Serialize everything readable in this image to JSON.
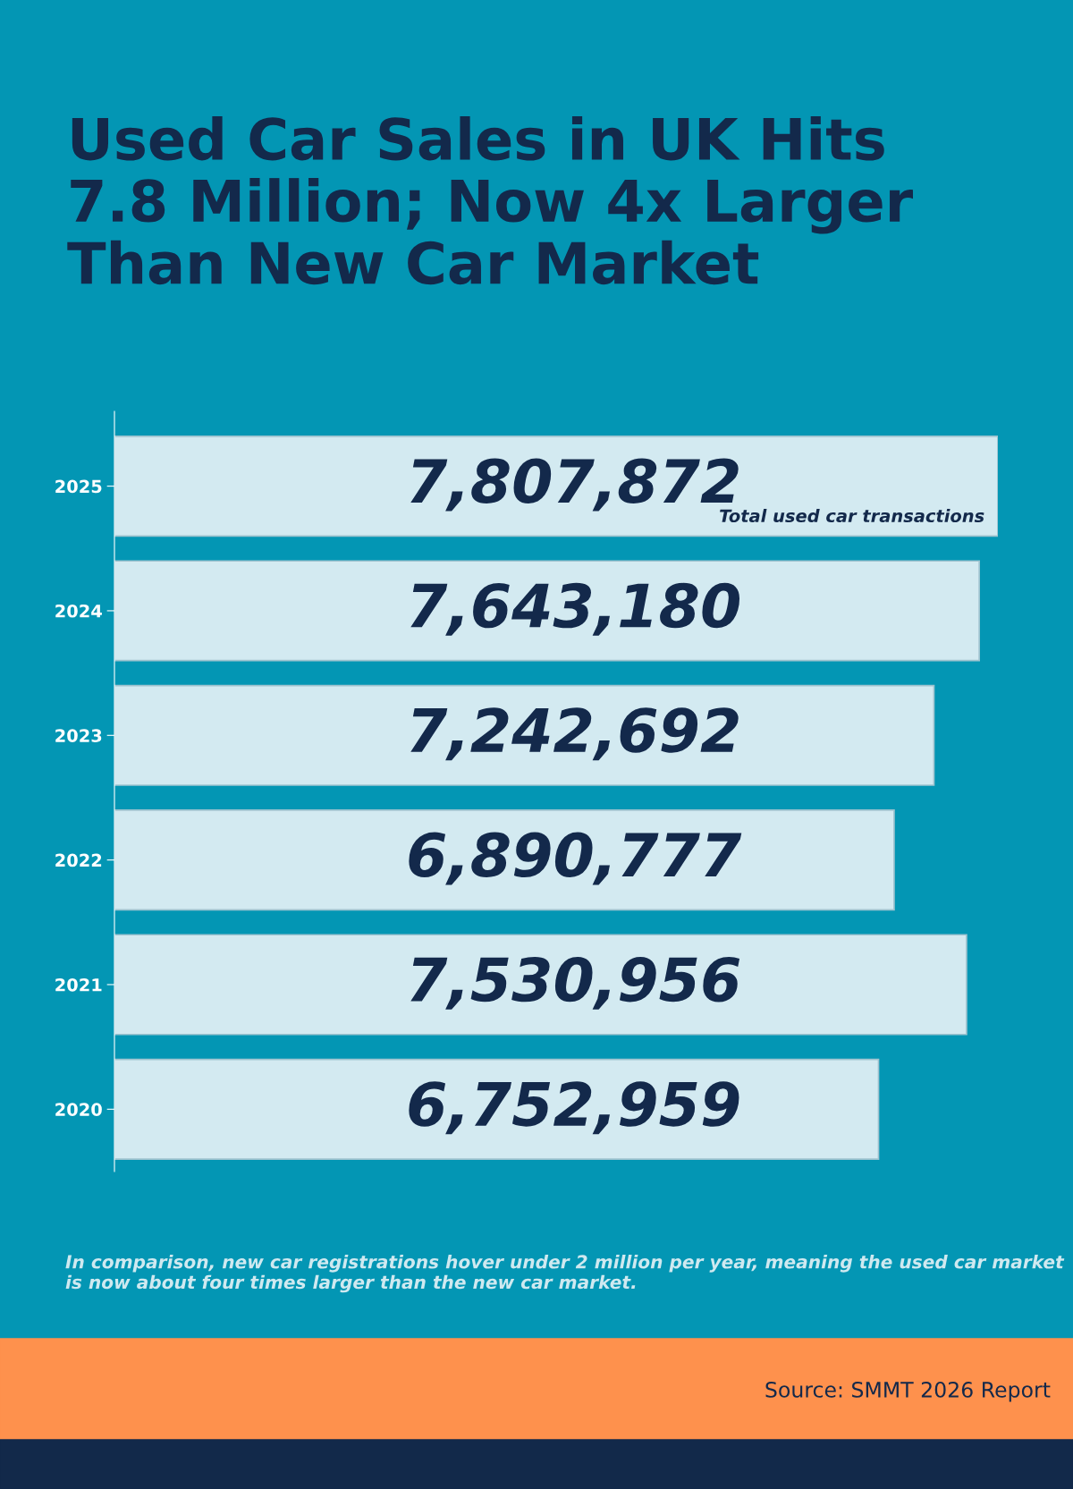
{
  "chart_data": {
    "type": "bar",
    "orientation": "horizontal",
    "title": "Used Car Sales in UK Hits\n7.8 Million; Now 4x Larger\nThan New Car Market",
    "categories": [
      "2025",
      "2024",
      "2023",
      "2022",
      "2021",
      "2020"
    ],
    "values": [
      7807872,
      7643180,
      7242692,
      6890777,
      7530956,
      6752959
    ],
    "value_labels": [
      "7,807,872",
      "7,643,180",
      "7,242,692",
      "6,890,777",
      "7,530,956",
      "6,752,959"
    ],
    "color": "#d3eaf1",
    "tick_labels": "y",
    "grid": false,
    "legend": false,
    "annotations": [
      "Total used car transactions",
      "In comparison, new car registrations hover under 2 million per year, meaning the used car market is now about four times larger than the new car market.",
      "Source: SMMT 2026 Report"
    ]
  }
}
